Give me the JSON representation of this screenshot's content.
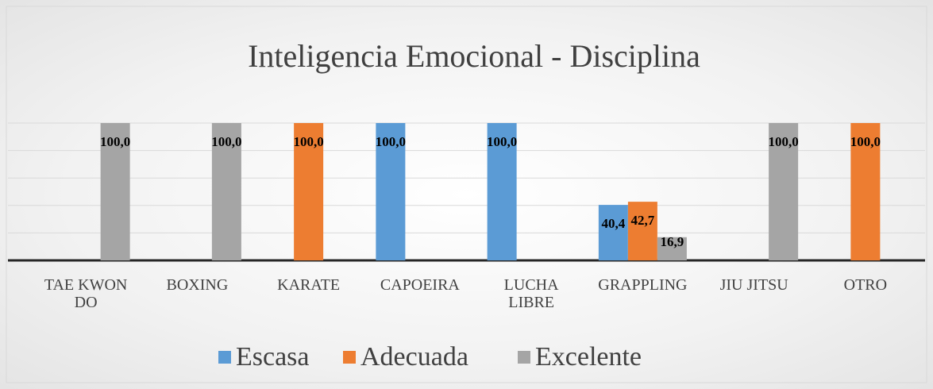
{
  "chart_data": {
    "type": "bar",
    "title": "Inteligencia Emocional - Disciplina",
    "categories": [
      "TAE KWON DO",
      "BOXING",
      "KARATE",
      "CAPOEIRA",
      "LUCHA LIBRE",
      "GRAPPLING",
      "JIU JITSU",
      "OTRO"
    ],
    "series": [
      {
        "name": "Escasa",
        "color": "#5b9bd5",
        "values": [
          null,
          null,
          null,
          100,
          100,
          40.4,
          null,
          null
        ],
        "value_labels": [
          null,
          null,
          null,
          "100,0",
          "100,0",
          "40,4",
          null,
          null
        ]
      },
      {
        "name": "Adecuada",
        "color": "#ed7d31",
        "values": [
          null,
          null,
          100,
          null,
          null,
          42.7,
          null,
          100
        ],
        "value_labels": [
          null,
          null,
          "100,0",
          null,
          null,
          "42,7",
          null,
          "100,0"
        ]
      },
      {
        "name": "Excelente",
        "color": "#a5a5a5",
        "values": [
          100,
          100,
          null,
          null,
          null,
          16.9,
          100,
          null
        ],
        "value_labels": [
          "100,0",
          "100,0",
          null,
          null,
          null,
          "16,9",
          "100,0",
          null
        ]
      }
    ],
    "ylim": [
      0,
      100
    ],
    "yticks": [
      0,
      20,
      40,
      60,
      80,
      100
    ],
    "grid": true,
    "legend": "bottom"
  }
}
